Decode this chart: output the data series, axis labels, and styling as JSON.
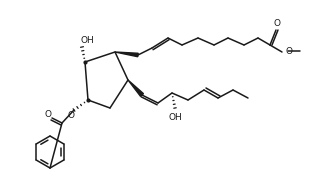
{
  "bg_color": "#ffffff",
  "line_color": "#1a1a1a",
  "line_width": 1.1,
  "fig_width": 3.34,
  "fig_height": 1.87,
  "dpi": 100,
  "xlim": [
    0,
    334
  ],
  "ylim": [
    0,
    187
  ]
}
